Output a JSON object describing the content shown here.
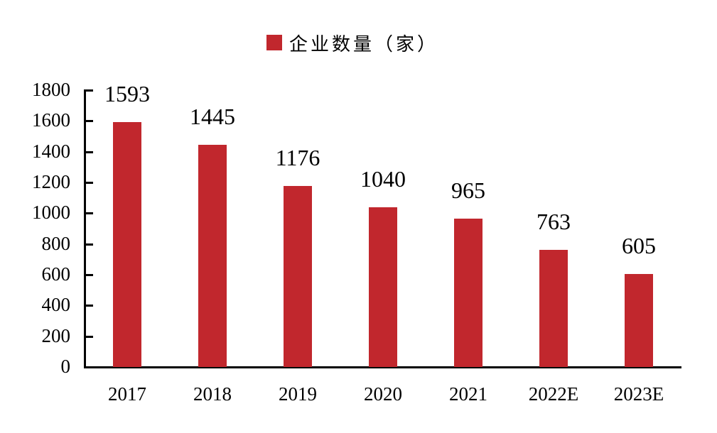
{
  "chart_data": {
    "type": "bar",
    "title": "",
    "legend": [
      "企业数量（家）"
    ],
    "legend_position": "top",
    "categories": [
      "2017",
      "2018",
      "2019",
      "2020",
      "2021",
      "2022E",
      "2023E"
    ],
    "series": [
      {
        "name": "企业数量（家）",
        "values": [
          1593,
          1445,
          1176,
          1040,
          965,
          763,
          605
        ],
        "color": "#C1272D"
      }
    ],
    "data_labels": [
      "1593",
      "1445",
      "1176",
      "1040",
      "965",
      "763",
      "605"
    ],
    "xlabel": "",
    "ylabel": "",
    "ylim": [
      0,
      1800
    ],
    "yticks": [
      "0",
      "200",
      "400",
      "600",
      "800",
      "1000",
      "1200",
      "1400",
      "1600",
      "1800"
    ],
    "grid": false
  },
  "legend": {
    "label": "企业数量（家）",
    "color": "#C1272D"
  }
}
